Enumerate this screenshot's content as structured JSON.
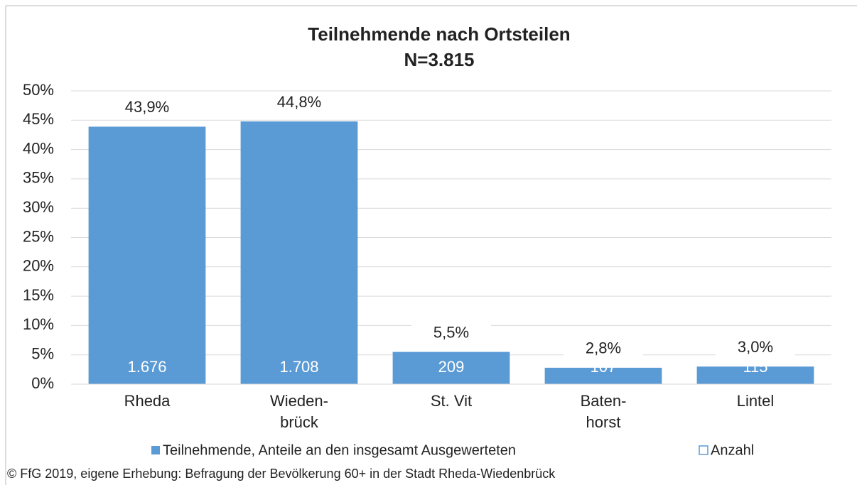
{
  "chart_data": {
    "type": "bar",
    "title": "Teilnehmende nach Ortsteilen",
    "subtitle": "N=3.815",
    "categories": [
      "Rheda",
      "Wieden-\nbrück",
      "St. Vit",
      "Baten-\nhorst",
      "Lintel"
    ],
    "series": [
      {
        "name": "Teilnehmende, Anteile an den insgesamt Ausgewerteten",
        "color": "#5b9bd5",
        "values": [
          43.9,
          44.8,
          5.5,
          2.8,
          3.0
        ],
        "value_labels": [
          "43,9%",
          "44,8%",
          "5,5%",
          "2,8%",
          "3,0%"
        ]
      },
      {
        "name": "Anzahl",
        "color": "#ffffff",
        "values": [
          1676,
          1708,
          209,
          107,
          115
        ],
        "value_labels": [
          "1.676",
          "1.708",
          "209",
          "107",
          "115"
        ]
      }
    ],
    "ylim": [
      0,
      50
    ],
    "yticks": [
      {
        "value": 0,
        "label": "0%"
      },
      {
        "value": 5,
        "label": "5%"
      },
      {
        "value": 10,
        "label": "10%"
      },
      {
        "value": 15,
        "label": "15%"
      },
      {
        "value": 20,
        "label": "20%"
      },
      {
        "value": 25,
        "label": "25%"
      },
      {
        "value": 30,
        "label": "30%"
      },
      {
        "value": 35,
        "label": "35%"
      },
      {
        "value": 40,
        "label": "40%"
      },
      {
        "value": 45,
        "label": "45%"
      },
      {
        "value": 50,
        "label": "50%"
      }
    ],
    "grid": true,
    "legend": "bottom",
    "source": "© FfG 2019, eigene Erhebung: Befragung der Bevölkerung 60+ in der Stadt Rheda-Wiedenbrück"
  }
}
